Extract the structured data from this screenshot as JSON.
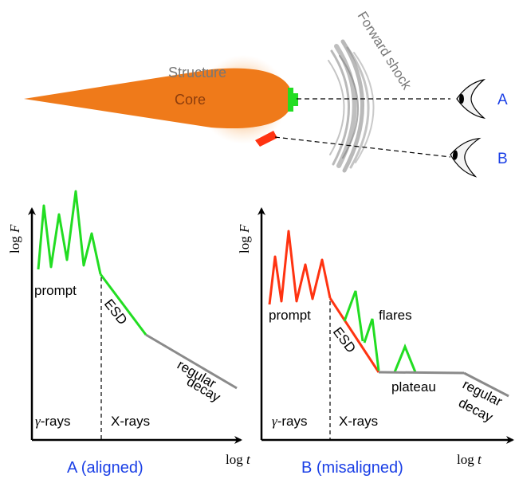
{
  "top": {
    "structure_label": "Structure",
    "core_label": "Core",
    "forward_shock_label": "Forward shock",
    "observer_a": "A",
    "observer_b": "B"
  },
  "panel_a": {
    "y_label_log": "log",
    "y_label_var": "F",
    "x_label_log": "log",
    "x_label_var": "t",
    "prompt": "prompt",
    "esd": "ESD",
    "regular": "regular",
    "decay": "decay",
    "gamma_prefix": "γ",
    "gamma_suffix": "-rays",
    "xrays": "X-rays",
    "caption": "A (aligned)"
  },
  "panel_b": {
    "y_label_log": "log",
    "y_label_var": "F",
    "x_label_log": "log",
    "x_label_var": "t",
    "prompt": "prompt",
    "esd": "ESD",
    "flares": "flares",
    "plateau": "plateau",
    "regular": "regular",
    "decay": "decay",
    "gamma_prefix": "γ",
    "gamma_suffix": "-rays",
    "xrays": "X-rays",
    "caption": "B (misaligned)"
  },
  "colors": {
    "core": "#ef7a1a",
    "green": "#22dd22",
    "red": "#ff3311",
    "gray": "#8a8a8a",
    "blue": "#1a3fe6"
  }
}
